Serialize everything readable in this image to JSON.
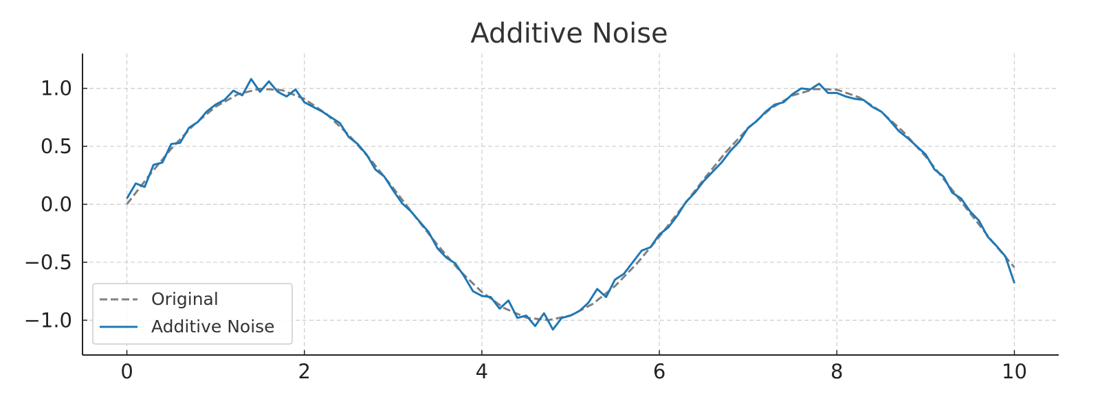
{
  "chart_data": {
    "type": "line",
    "title": "Additive Noise",
    "xlabel": "",
    "ylabel": "",
    "xlim": [
      -0.5,
      10.5
    ],
    "ylim": [
      -1.3,
      1.3
    ],
    "xticks": [
      0,
      2,
      4,
      6,
      8,
      10
    ],
    "xtick_labels": [
      "0",
      "2",
      "4",
      "6",
      "8",
      "10"
    ],
    "yticks": [
      1.0,
      0.5,
      0.0,
      -0.5,
      -1.0
    ],
    "ytick_labels": [
      "1.0",
      "0.5",
      "0.0",
      "−0.5",
      "−1.0"
    ],
    "grid": true,
    "legend_position": "lower-left",
    "series": [
      {
        "name": "Original",
        "color": "#808080",
        "style": "dashed",
        "x": [
          0,
          0.25,
          0.5,
          0.75,
          1,
          1.25,
          1.5,
          1.75,
          2,
          2.25,
          2.5,
          2.75,
          3,
          3.25,
          3.5,
          3.75,
          4,
          4.25,
          4.5,
          4.75,
          5,
          5.25,
          5.5,
          5.75,
          6,
          6.25,
          6.5,
          6.75,
          7,
          7.25,
          7.5,
          7.75,
          8,
          8.25,
          8.5,
          8.75,
          9,
          9.25,
          9.5,
          9.75,
          10
        ],
        "y": [
          0.0,
          0.247,
          0.479,
          0.682,
          0.841,
          0.949,
          0.997,
          0.984,
          0.909,
          0.778,
          0.598,
          0.382,
          0.141,
          -0.108,
          -0.351,
          -0.572,
          -0.757,
          -0.895,
          -0.978,
          -0.999,
          -0.959,
          -0.859,
          -0.706,
          -0.508,
          -0.279,
          -0.033,
          0.215,
          0.45,
          0.657,
          0.823,
          0.938,
          0.994,
          0.989,
          0.923,
          0.798,
          0.624,
          0.412,
          0.173,
          -0.075,
          -0.32,
          -0.544
        ]
      },
      {
        "name": "Additive Noise",
        "color": "#1f77b4",
        "style": "solid",
        "x": [
          0,
          0.1,
          0.2,
          0.3,
          0.4,
          0.5,
          0.6,
          0.7,
          0.8,
          0.9,
          1.0,
          1.1,
          1.2,
          1.3,
          1.4,
          1.5,
          1.6,
          1.7,
          1.8,
          1.9,
          2.0,
          2.1,
          2.2,
          2.3,
          2.4,
          2.5,
          2.6,
          2.7,
          2.8,
          2.9,
          3.0,
          3.1,
          3.2,
          3.3,
          3.4,
          3.5,
          3.6,
          3.7,
          3.8,
          3.9,
          4.0,
          4.1,
          4.2,
          4.3,
          4.4,
          4.5,
          4.6,
          4.7,
          4.8,
          4.9,
          5.0,
          5.1,
          5.2,
          5.3,
          5.4,
          5.5,
          5.6,
          5.7,
          5.8,
          5.9,
          6.0,
          6.1,
          6.2,
          6.3,
          6.4,
          6.5,
          6.6,
          6.7,
          6.8,
          6.9,
          7.0,
          7.1,
          7.2,
          7.3,
          7.4,
          7.5,
          7.6,
          7.7,
          7.8,
          7.9,
          8.0,
          8.1,
          8.2,
          8.3,
          8.4,
          8.5,
          8.6,
          8.7,
          8.8,
          8.9,
          9.0,
          9.1,
          9.2,
          9.3,
          9.4,
          9.5,
          9.6,
          9.7,
          9.8,
          9.9,
          10.0
        ],
        "y": [
          0.05,
          0.18,
          0.15,
          0.34,
          0.36,
          0.52,
          0.53,
          0.66,
          0.71,
          0.8,
          0.86,
          0.9,
          0.98,
          0.94,
          1.08,
          0.97,
          1.06,
          0.97,
          0.93,
          0.99,
          0.88,
          0.84,
          0.8,
          0.75,
          0.7,
          0.58,
          0.52,
          0.43,
          0.3,
          0.24,
          0.12,
          0.01,
          -0.06,
          -0.15,
          -0.24,
          -0.38,
          -0.46,
          -0.51,
          -0.62,
          -0.75,
          -0.79,
          -0.8,
          -0.9,
          -0.83,
          -0.98,
          -0.96,
          -1.05,
          -0.94,
          -1.08,
          -0.98,
          -0.96,
          -0.92,
          -0.85,
          -0.73,
          -0.8,
          -0.65,
          -0.6,
          -0.5,
          -0.4,
          -0.37,
          -0.26,
          -0.2,
          -0.1,
          0.02,
          0.1,
          0.2,
          0.28,
          0.36,
          0.46,
          0.54,
          0.66,
          0.72,
          0.8,
          0.86,
          0.88,
          0.95,
          1.0,
          0.99,
          1.04,
          0.96,
          0.96,
          0.93,
          0.91,
          0.9,
          0.84,
          0.8,
          0.72,
          0.63,
          0.57,
          0.5,
          0.43,
          0.3,
          0.24,
          0.1,
          0.05,
          -0.06,
          -0.14,
          -0.28,
          -0.36,
          -0.45,
          -0.68
        ]
      }
    ]
  }
}
